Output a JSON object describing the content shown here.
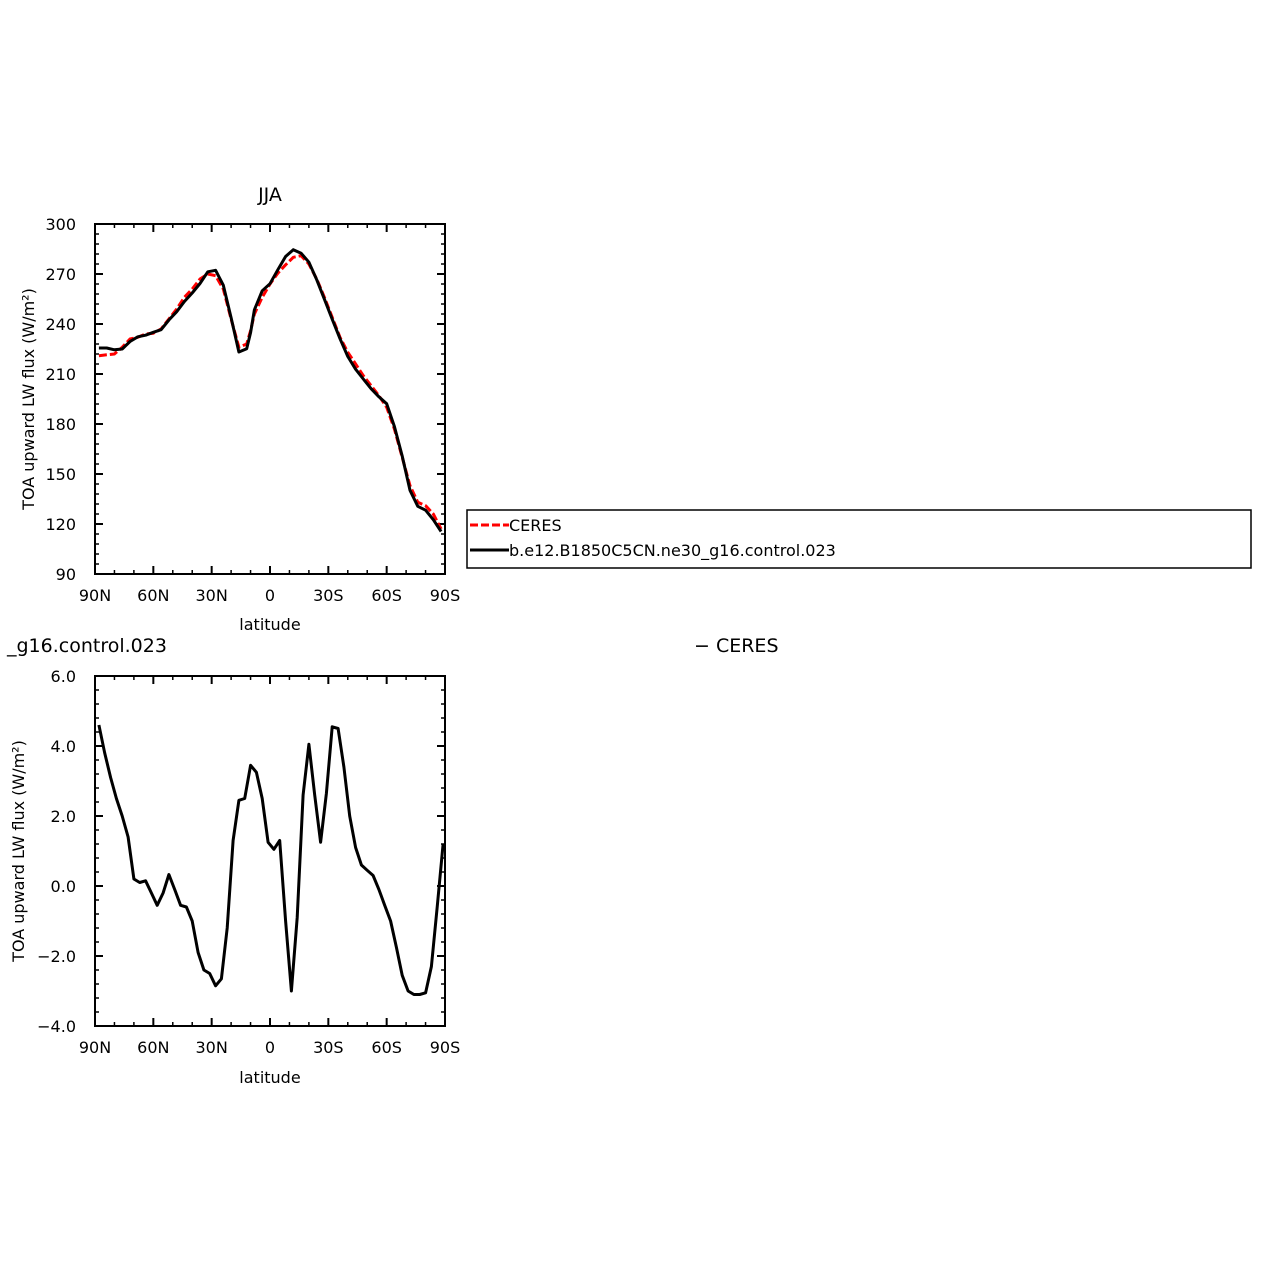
{
  "chart_data": [
    {
      "type": "line",
      "title": "JJA",
      "xlabel": "latitude",
      "ylabel": "TOA upward LW flux (W/m²)",
      "xlim": [
        90,
        -90
      ],
      "ylim": [
        90,
        300
      ],
      "x_ticks": [
        90,
        60,
        30,
        0,
        -30,
        -60,
        -90
      ],
      "x_tick_labels": [
        "90N",
        "60N",
        "30N",
        "0",
        "30S",
        "60S",
        "90S"
      ],
      "y_ticks": [
        90,
        120,
        150,
        180,
        210,
        240,
        270,
        300
      ],
      "y_tick_labels": [
        "90",
        "120",
        "150",
        "180",
        "210",
        "240",
        "270",
        "300"
      ],
      "legend": "right",
      "grid": false,
      "series": [
        {
          "name": "CERES",
          "color": "#ff0000",
          "style": "dashed",
          "x": [
            88,
            84,
            80,
            76,
            72,
            68,
            64,
            60,
            56,
            52,
            48,
            44,
            40,
            36,
            32,
            28,
            24,
            20,
            16,
            12,
            10,
            8,
            4,
            0,
            -4,
            -8,
            -12,
            -16,
            -20,
            -24,
            -28,
            -32,
            -36,
            -40,
            -44,
            -48,
            -52,
            -56,
            -60,
            -64,
            -68,
            -72,
            -76,
            -80,
            -84,
            -88
          ],
          "y": [
            221,
            221.5,
            222,
            226,
            231,
            232,
            234,
            234.5,
            237,
            243,
            249,
            256,
            261,
            267,
            270,
            269,
            261,
            243,
            226,
            228,
            236,
            246,
            256,
            264,
            270.5,
            275.5,
            280,
            281,
            276,
            267,
            256,
            244,
            232,
            223,
            216,
            209,
            203,
            197,
            190,
            177,
            160,
            143,
            133,
            131,
            126,
            117
          ]
        },
        {
          "name": "b.e12.B1850C5CN.ne30_g16.control.023",
          "color": "#000000",
          "style": "solid",
          "x": [
            88,
            84,
            80,
            76,
            72,
            68,
            64,
            60,
            56,
            52,
            48,
            44,
            40,
            36,
            32,
            28,
            24,
            20,
            16,
            12,
            10,
            8,
            4,
            0,
            -4,
            -8,
            -12,
            -16,
            -20,
            -24,
            -28,
            -32,
            -36,
            -40,
            -44,
            -48,
            -52,
            -56,
            -60,
            -64,
            -68,
            -72,
            -76,
            -80,
            -84,
            -88
          ],
          "y": [
            225.6,
            225.6,
            224.5,
            225,
            229.5,
            232.3,
            233.3,
            235,
            236.6,
            242.4,
            247.4,
            253.5,
            258.6,
            264.3,
            271.3,
            272.2,
            263.3,
            243.8,
            223.2,
            225.2,
            234.9,
            248.5,
            259.9,
            264.2,
            272.5,
            280.5,
            284.6,
            282.5,
            277.1,
            266.6,
            254.9,
            242.9,
            231.2,
            220.5,
            212.9,
            207.0,
            201.2,
            196.3,
            192.1,
            178.5,
            160.8,
            140.2,
            130.6,
            128.3,
            122.6,
            115.5
          ]
        }
      ]
    },
    {
      "type": "line",
      "title": "_g16.control.023",
      "title_right": "− CERES",
      "xlabel": "latitude",
      "ylabel": "TOA upward LW flux (W/m²)",
      "xlim": [
        90,
        -90
      ],
      "ylim": [
        -4.0,
        6.0
      ],
      "x_ticks": [
        90,
        60,
        30,
        0,
        -30,
        -60,
        -90
      ],
      "x_tick_labels": [
        "90N",
        "60N",
        "30N",
        "0",
        "30S",
        "60S",
        "90S"
      ],
      "y_ticks": [
        -4,
        -2,
        0,
        2,
        4,
        6
      ],
      "y_tick_labels": [
        "−4.0",
        "−2.0",
        "0.0",
        "2.0",
        "4.0",
        "6.0"
      ],
      "grid": false,
      "series": [
        {
          "color": "#000000",
          "style": "solid",
          "x": [
            88,
            85,
            82,
            79,
            76,
            73,
            70,
            67,
            64,
            61,
            58,
            55,
            52,
            49,
            46,
            43,
            40,
            37,
            34,
            31,
            28,
            25,
            22,
            19,
            16,
            13,
            10,
            7,
            4,
            1,
            -2,
            -5,
            -8,
            -11,
            -14,
            -17,
            -20,
            -23,
            -26,
            -29,
            -32,
            -35,
            -38,
            -41,
            -44,
            -47,
            -50,
            -53,
            -56,
            -59,
            -62,
            -65,
            -68,
            -71,
            -74,
            -77,
            -80,
            -83,
            -86,
            -89
          ],
          "y": [
            4.6,
            3.8,
            3.1,
            2.5,
            2.0,
            1.4,
            0.2,
            0.1,
            0.15,
            -0.2,
            -0.55,
            -0.2,
            0.33,
            -0.1,
            -0.55,
            -0.6,
            -1.0,
            -1.9,
            -2.4,
            -2.5,
            -2.85,
            -2.65,
            -1.2,
            1.3,
            2.45,
            2.5,
            3.45,
            3.25,
            2.5,
            1.25,
            1.05,
            1.3,
            -1.0,
            -3.0,
            -0.9,
            2.6,
            4.05,
            2.6,
            1.25,
            2.65,
            4.55,
            4.5,
            3.4,
            2.0,
            1.1,
            0.6,
            0.45,
            0.3,
            -0.1,
            -0.55,
            -1.0,
            -1.75,
            -2.55,
            -3.0,
            -3.1,
            -3.1,
            -3.05,
            -2.3,
            -0.6,
            1.2
          ]
        }
      ]
    }
  ],
  "legend": {
    "entries": [
      "CERES",
      "b.e12.B1850C5CN.ne30_g16.control.023"
    ]
  }
}
